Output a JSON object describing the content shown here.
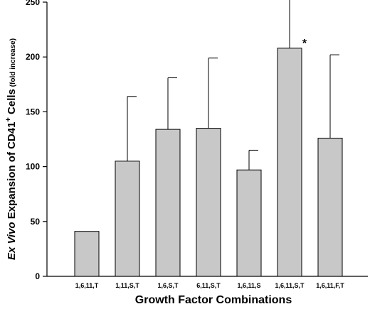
{
  "chart_data": {
    "type": "bar",
    "title": "",
    "xlabel": "Growth Factor Combinations",
    "ylabel": {
      "italic_part": "Ex Vivo",
      "main_part": " Expansion of CD41",
      "superscript": "+",
      "after_sup": " Cells",
      "small_part": " (fold increase)"
    },
    "categories": [
      "1,6,11,T",
      "1,11,S,T",
      "1,6,S,T",
      "6,11,S,T",
      "1,6,11,S",
      "1,6,11,S,T",
      "1,6,11,F,T"
    ],
    "values": [
      41,
      105,
      134,
      135,
      97,
      208,
      126
    ],
    "error_upper": [
      null,
      164,
      181,
      199,
      115,
      253,
      202
    ],
    "annotations": [
      {
        "category": "1,6,11,S,T",
        "text": "*"
      }
    ],
    "ylim": [
      0,
      250
    ],
    "yticks": [
      0,
      50,
      100,
      150,
      200,
      250
    ],
    "grid": false,
    "bar_color": "#c8c8c8",
    "edge_color": "#000000"
  }
}
